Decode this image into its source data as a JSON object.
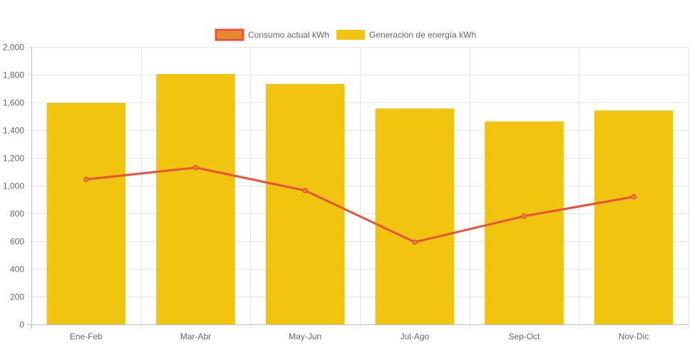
{
  "chart_data": {
    "type": "bar",
    "categories": [
      "Ene-Feb",
      "Mar-Abr",
      "May-Jun",
      "Jul-Ago",
      "Sep-Oct",
      "Nov-Dic"
    ],
    "series": [
      {
        "name": "Consumo actual kWh",
        "type": "line",
        "values": [
          1045,
          1130,
          965,
          593,
          780,
          920
        ],
        "color": "#e8503a",
        "legend_fill": "#e68a2e"
      },
      {
        "name": "Generación de energía kWh",
        "type": "bar",
        "values": [
          1597,
          1805,
          1733,
          1556,
          1463,
          1542
        ],
        "color": "#f1c40f"
      }
    ],
    "ylim": [
      0,
      2000
    ],
    "yticks": [
      0,
      200,
      400,
      600,
      800,
      1000,
      1200,
      1400,
      1600,
      1800,
      2000
    ],
    "ytick_labels": [
      "0",
      "200",
      "400",
      "600",
      "800",
      "1,000",
      "1,200",
      "1,400",
      "1,600",
      "1,800",
      "2,000"
    ],
    "grid": true,
    "legend_position": "top-center",
    "title": "",
    "xlabel": "",
    "ylabel": ""
  }
}
